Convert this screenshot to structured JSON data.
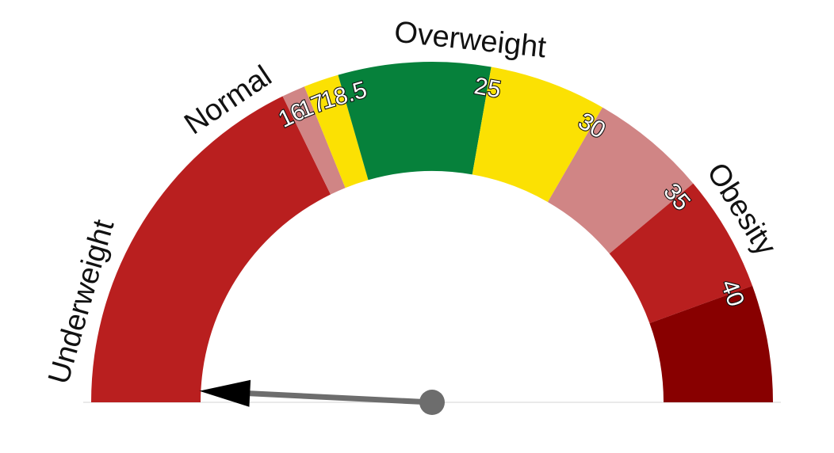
{
  "chart_data": {
    "type": "gauge",
    "title": "",
    "range": [
      0,
      45
    ],
    "bands": [
      {
        "from": 0,
        "to": 16,
        "color": "#b91f1f"
      },
      {
        "from": 16,
        "to": 17,
        "color": "#d08585"
      },
      {
        "from": 17,
        "to": 18.5,
        "color": "#fbe103"
      },
      {
        "from": 18.5,
        "to": 25,
        "color": "#06813b"
      },
      {
        "from": 25,
        "to": 30,
        "color": "#fbe103"
      },
      {
        "from": 30,
        "to": 35,
        "color": "#d08585"
      },
      {
        "from": 35,
        "to": 40,
        "color": "#b91f1f"
      },
      {
        "from": 40,
        "to": 45,
        "color": "#880000"
      }
    ],
    "tick_labels": [
      "16",
      "17",
      "18.5",
      "25",
      "30",
      "35",
      "40"
    ],
    "category_labels": [
      {
        "text": "Underweight",
        "at": 4
      },
      {
        "text": "Normal",
        "at": 14
      },
      {
        "text": "Overweight",
        "at": 24
      },
      {
        "text": "Obesity",
        "at": 37
      }
    ],
    "needle_value": 0.7,
    "colors": {
      "needle": "#6d6d6d",
      "needle_tip": "#000000",
      "hub": "#6d6d6d"
    }
  }
}
